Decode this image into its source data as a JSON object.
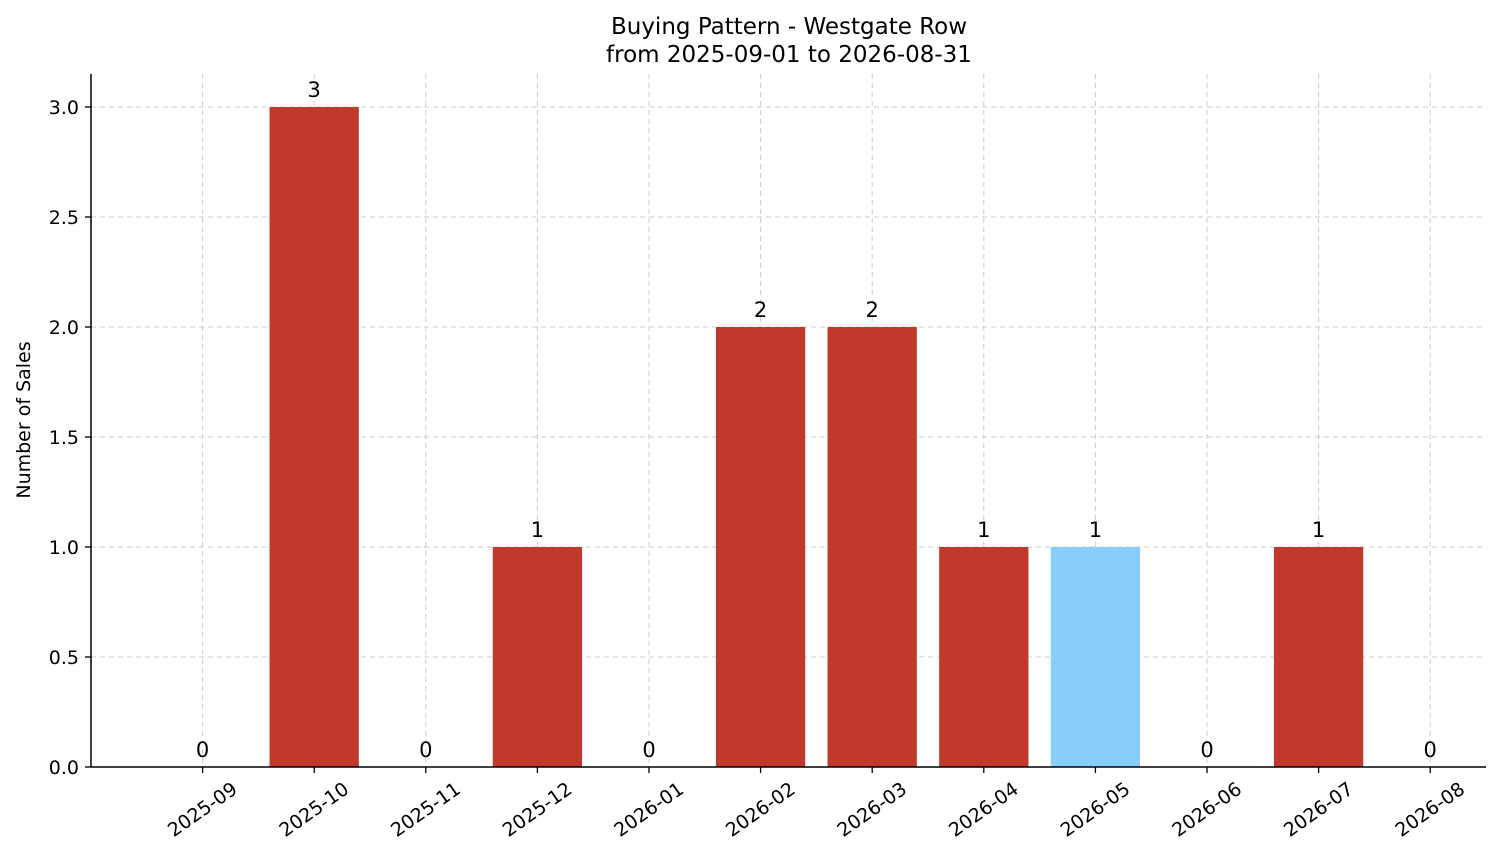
{
  "chart_data": {
    "type": "bar",
    "title": "Buying Pattern - Westgate Row",
    "subtitle": "from 2025-09-01 to 2026-08-31",
    "xlabel": "",
    "ylabel": "Number of Sales",
    "categories": [
      "2025-09",
      "2025-10",
      "2025-11",
      "2025-12",
      "2026-01",
      "2026-02",
      "2026-03",
      "2026-04",
      "2026-05",
      "2026-06",
      "2026-07",
      "2026-08"
    ],
    "values": [
      0,
      3,
      0,
      1,
      0,
      2,
      2,
      1,
      1,
      0,
      1,
      0
    ],
    "data_labels": [
      "0",
      "3",
      "0",
      "1",
      "0",
      "2",
      "2",
      "1",
      "1",
      "0",
      "1",
      "0"
    ],
    "ylim": [
      0,
      3.15
    ],
    "yticks": [
      0.0,
      0.5,
      1.0,
      1.5,
      2.0,
      2.5,
      3.0
    ],
    "ytick_labels": [
      "0.0",
      "0.5",
      "1.0",
      "1.5",
      "2.0",
      "2.5",
      "3.0"
    ],
    "grid": true,
    "legend": "none",
    "colors": {
      "default_bar": "#c0392b",
      "highlight_bar": "#87cefa",
      "highlight_category": "2026-05",
      "grid": "#cccccc",
      "axis": "#000000"
    }
  }
}
